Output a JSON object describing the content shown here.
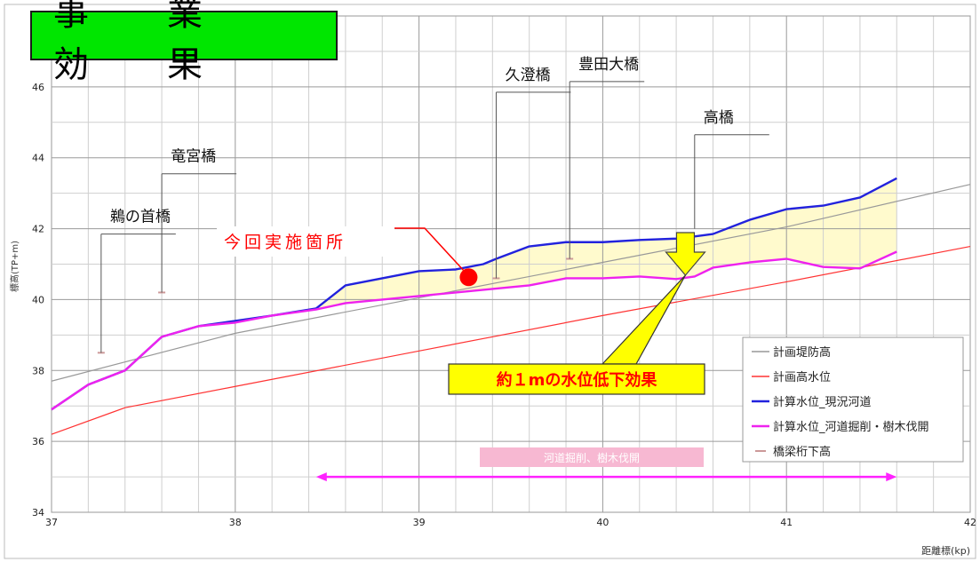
{
  "title": "事　業　効　果",
  "chart_data": {
    "type": "line",
    "xlabel": "距離標(kp)",
    "ylabel": "標高(TP+m)",
    "xlim": [
      37,
      42
    ],
    "ylim": [
      34,
      48
    ],
    "x_ticks": [
      "37",
      "38",
      "39",
      "40",
      "41",
      "42"
    ],
    "y_ticks": [
      "34",
      "36",
      "38",
      "40",
      "42",
      "44",
      "46"
    ],
    "grid": true,
    "legend_position": "bottom-right",
    "series": [
      {
        "name": "計画堤防高",
        "color": "#999999",
        "x": [
          37,
          38,
          39,
          40,
          41,
          42
        ],
        "y": [
          37.7,
          39.05,
          40.05,
          41.05,
          42.05,
          43.25
        ]
      },
      {
        "name": "計画高水位",
        "color": "#ff3333",
        "x": [
          37,
          37.4,
          38,
          39,
          40,
          41,
          42
        ],
        "y": [
          36.2,
          36.95,
          37.55,
          38.55,
          39.55,
          40.5,
          41.5
        ]
      },
      {
        "name": "計算水位_現況河道",
        "color": "#2222dd",
        "x": [
          37,
          37.2,
          37.4,
          37.6,
          37.8,
          38,
          38.2,
          38.44,
          38.6,
          39,
          39.2,
          39.35,
          39.42,
          39.6,
          39.8,
          40,
          40.2,
          40.4,
          40.5,
          40.6,
          40.8,
          41,
          41.2,
          41.4,
          41.6
        ],
        "y": [
          36.9,
          37.6,
          38.0,
          38.95,
          39.25,
          39.4,
          39.55,
          39.75,
          40.4,
          40.8,
          40.85,
          41.0,
          41.15,
          41.5,
          41.62,
          41.62,
          41.68,
          41.72,
          41.78,
          41.85,
          42.25,
          42.55,
          42.65,
          42.88,
          43.42
        ]
      },
      {
        "name": "計算水位_河道掘削・樹木伐開",
        "color": "#ee22ee",
        "x": [
          37,
          37.2,
          37.4,
          37.6,
          37.8,
          38,
          38.2,
          38.44,
          38.6,
          39,
          39.2,
          39.4,
          39.6,
          39.8,
          40,
          40.2,
          40.4,
          40.5,
          40.6,
          40.8,
          41,
          41.2,
          41.4,
          41.6
        ],
        "y": [
          36.9,
          37.6,
          38.0,
          38.95,
          39.25,
          39.35,
          39.55,
          39.72,
          39.9,
          40.1,
          40.2,
          40.3,
          40.4,
          40.6,
          40.6,
          40.65,
          40.58,
          40.65,
          40.9,
          41.05,
          41.15,
          40.92,
          40.88,
          41.35
        ]
      },
      {
        "name": "橋梁桁下高",
        "color": "#cc9999",
        "marker": "dash",
        "x": [
          37.27,
          37.6,
          39.42,
          39.82
        ],
        "y": [
          38.5,
          40.2,
          40.6,
          41.15
        ]
      }
    ],
    "bridges": [
      {
        "label": "鵜の首橋",
        "x": 37.27,
        "label_y": 42.2
      },
      {
        "label": "竜宮橋",
        "x": 37.6,
        "label_y": 43.9
      },
      {
        "label": "久澄橋",
        "x": 39.42,
        "label_y": 46.2
      },
      {
        "label": "豊田大橋",
        "x": 39.82,
        "label_y": 46.5
      },
      {
        "label": "高橋",
        "x": 40.5,
        "label_y": 45.0
      }
    ],
    "annotations": [
      {
        "text": "今回実施箇所",
        "point_x": 39.27,
        "point_y": 40.63
      },
      {
        "text": "約１mの水位低下効果"
      },
      {
        "text": "河道掘削、樹木伐開",
        "x_start": 38.44,
        "x_end": 41.6
      }
    ]
  }
}
